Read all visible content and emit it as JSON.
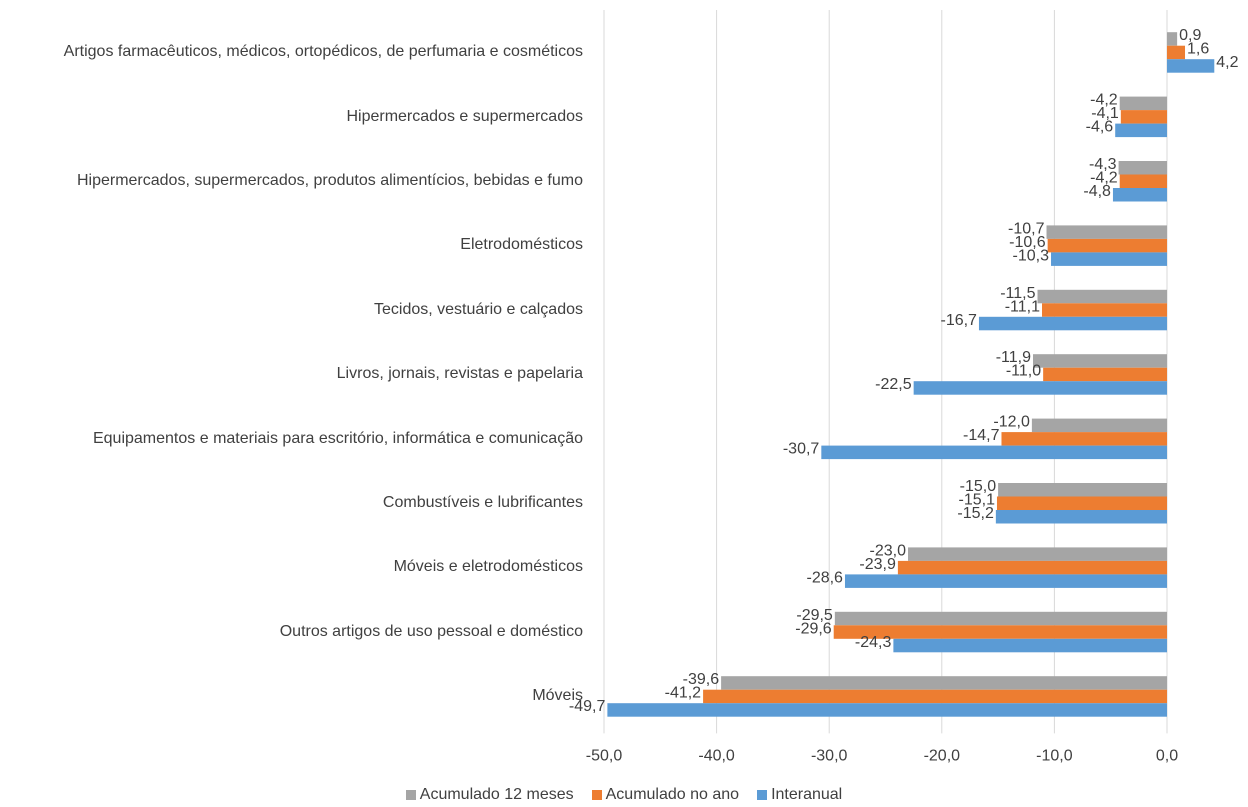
{
  "chart_data": {
    "type": "bar",
    "orientation": "horizontal",
    "categories": [
      "Artigos farmacêuticos, médicos, ortopédicos, de perfumaria e cosméticos",
      "Hipermercados e supermercados",
      "Hipermercados, supermercados, produtos alimentícios, bebidas e fumo",
      "Eletrodomésticos",
      "Tecidos, vestuário e calçados",
      "Livros, jornais, revistas e papelaria",
      "Equipamentos e materiais para escritório, informática e comunicação",
      "Combustíveis e lubrificantes",
      "Móveis e eletrodomésticos",
      "Outros artigos de uso pessoal e doméstico",
      "Móveis"
    ],
    "series": [
      {
        "name": "Acumulado 12 meses",
        "color": "#a5a5a5",
        "values": [
          0.9,
          -4.2,
          -4.3,
          -10.7,
          -11.5,
          -11.9,
          -12.0,
          -15.0,
          -23.0,
          -29.5,
          -39.6
        ],
        "value_labels": [
          "0,9",
          "-4,2",
          "-4,3",
          "-10,7",
          "-11,5",
          "-11,9",
          "-12,0",
          "-15,0",
          "-23,0",
          "-29,5",
          "-39,6"
        ]
      },
      {
        "name": "Acumulado no ano",
        "color": "#ed7d31",
        "values": [
          1.6,
          -4.1,
          -4.2,
          -10.6,
          -11.1,
          -11.0,
          -14.7,
          -15.1,
          -23.9,
          -29.6,
          -41.2
        ],
        "value_labels": [
          "1,6",
          "-4,1",
          "-4,2",
          "-10,6",
          "-11,1",
          "-11,0",
          "-14,7",
          "-15,1",
          "-23,9",
          "-29,6",
          "-41,2"
        ]
      },
      {
        "name": "Interanual",
        "color": "#5b9bd5",
        "values": [
          4.2,
          -4.6,
          -4.8,
          -10.3,
          -16.7,
          -22.5,
          -30.7,
          -15.2,
          -28.6,
          -24.3,
          -49.7
        ],
        "value_labels": [
          "4,2",
          "-4,6",
          "-4,8",
          "-10,3",
          "-16,7",
          "-22,5",
          "-30,7",
          "-15,2",
          "-28,6",
          "-24,3",
          "-49,7"
        ]
      }
    ],
    "xlim": [
      -50,
      4.5
    ],
    "xticks": [
      {
        "value": -50,
        "label": "-50,0"
      },
      {
        "value": -40,
        "label": "-40,0"
      },
      {
        "value": -30,
        "label": "-30,0"
      },
      {
        "value": -20,
        "label": "-20,0"
      },
      {
        "value": -10,
        "label": "-10,0"
      },
      {
        "value": 0,
        "label": "0,0"
      }
    ],
    "grid": true,
    "legend": "bottom"
  }
}
